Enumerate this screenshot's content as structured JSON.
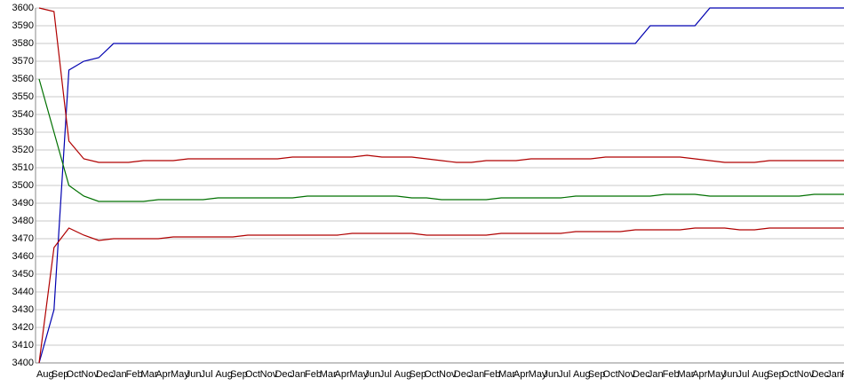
{
  "chart_data": {
    "type": "line",
    "categories": [
      "Aug",
      "Sep",
      "Oct",
      "Nov",
      "Dec",
      "Jan",
      "Feb",
      "Mar",
      "Apr",
      "May",
      "Jun",
      "Jul",
      "Aug",
      "Sep",
      "Oct",
      "Nov",
      "Dec",
      "Jan",
      "Feb",
      "Mar",
      "Apr",
      "May",
      "Jun",
      "Jul",
      "Aug",
      "Sep",
      "Oct",
      "Nov",
      "Dec",
      "Jan",
      "Feb",
      "Mar",
      "Apr",
      "May",
      "Jun",
      "Jul",
      "Aug",
      "Sep",
      "Oct",
      "Nov",
      "Dec",
      "Jan",
      "Feb",
      "Mar",
      "Apr",
      "May",
      "Jun",
      "Jul",
      "Aug",
      "Sep",
      "Oct",
      "Nov",
      "Dec",
      "Jan",
      "Feb"
    ],
    "series": [
      {
        "color": "#0000b0",
        "values": [
          3400,
          3430,
          3565,
          3570,
          3572,
          3580,
          3580,
          3580,
          3580,
          3580,
          3580,
          3580,
          3580,
          3580,
          3580,
          3580,
          3580,
          3580,
          3580,
          3580,
          3580,
          3580,
          3580,
          3580,
          3580,
          3580,
          3580,
          3580,
          3580,
          3580,
          3580,
          3580,
          3580,
          3580,
          3580,
          3580,
          3580,
          3580,
          3580,
          3580,
          3580,
          3590,
          3590,
          3590,
          3590,
          3600,
          3600,
          3600,
          3600,
          3600,
          3600,
          3600,
          3600,
          3600,
          3600
        ]
      },
      {
        "color": "#b00000",
        "values": [
          3600,
          3598,
          3525,
          3515,
          3513,
          3513,
          3513,
          3514,
          3514,
          3514,
          3515,
          3515,
          3515,
          3515,
          3515,
          3515,
          3515,
          3516,
          3516,
          3516,
          3516,
          3516,
          3517,
          3516,
          3516,
          3516,
          3515,
          3514,
          3513,
          3513,
          3514,
          3514,
          3514,
          3515,
          3515,
          3515,
          3515,
          3515,
          3516,
          3516,
          3516,
          3516,
          3516,
          3516,
          3515,
          3514,
          3513,
          3513,
          3513,
          3514,
          3514,
          3514,
          3514,
          3514,
          3514
        ]
      },
      {
        "color": "#007000",
        "values": [
          3560,
          3530,
          3500,
          3494,
          3491,
          3491,
          3491,
          3491,
          3492,
          3492,
          3492,
          3492,
          3493,
          3493,
          3493,
          3493,
          3493,
          3493,
          3494,
          3494,
          3494,
          3494,
          3494,
          3494,
          3494,
          3493,
          3493,
          3492,
          3492,
          3492,
          3492,
          3493,
          3493,
          3493,
          3493,
          3493,
          3494,
          3494,
          3494,
          3494,
          3494,
          3494,
          3495,
          3495,
          3495,
          3494,
          3494,
          3494,
          3494,
          3494,
          3494,
          3494,
          3495,
          3495,
          3495
        ]
      },
      {
        "color": "#b00000",
        "values": [
          3400,
          3465,
          3476,
          3472,
          3469,
          3470,
          3470,
          3470,
          3470,
          3471,
          3471,
          3471,
          3471,
          3471,
          3472,
          3472,
          3472,
          3472,
          3472,
          3472,
          3472,
          3473,
          3473,
          3473,
          3473,
          3473,
          3472,
          3472,
          3472,
          3472,
          3472,
          3473,
          3473,
          3473,
          3473,
          3473,
          3474,
          3474,
          3474,
          3474,
          3475,
          3475,
          3475,
          3475,
          3476,
          3476,
          3476,
          3475,
          3475,
          3476,
          3476,
          3476,
          3476,
          3476,
          3476
        ]
      }
    ],
    "ylim": [
      3400,
      3600
    ],
    "yticks": [
      3400,
      3410,
      3420,
      3430,
      3440,
      3450,
      3460,
      3470,
      3480,
      3490,
      3500,
      3510,
      3520,
      3530,
      3540,
      3550,
      3560,
      3570,
      3580,
      3590,
      3600
    ],
    "grid": true
  }
}
